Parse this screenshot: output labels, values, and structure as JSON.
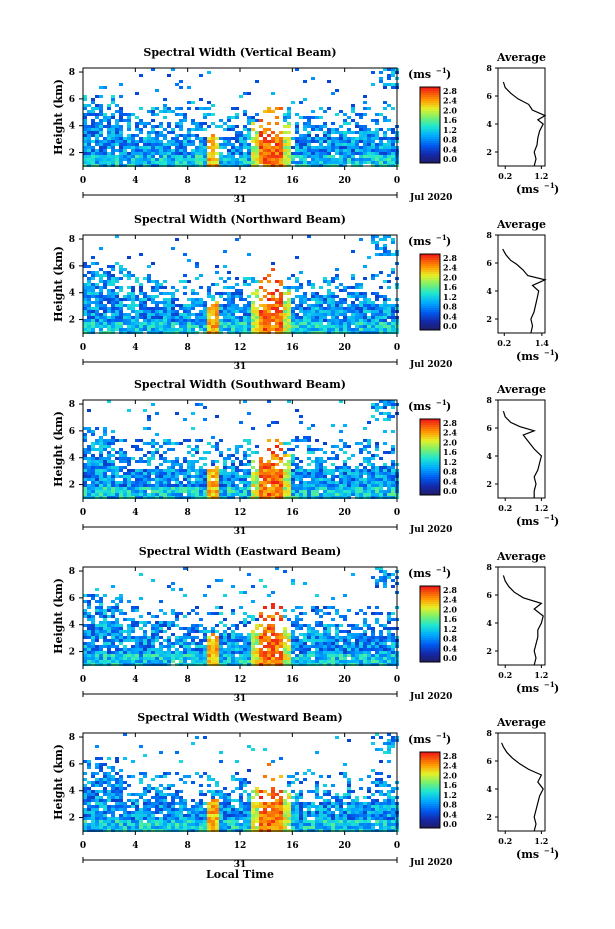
{
  "figure": {
    "x_axis_title": "Local Time",
    "colorbar_unit_base": "(ms",
    "colorbar_unit_exp": "−1",
    "profile_title": "Average",
    "date_day": "31",
    "date_month_year": "Jul 2020"
  },
  "chart_data": [
    {
      "type": "heatmap",
      "title": "Spectral Width (Vertical Beam)",
      "ylabel": "Height (km)",
      "x_ticks": [
        "0",
        "4",
        "8",
        "12",
        "16",
        "20",
        "0"
      ],
      "y_ticks": [
        "2",
        "4",
        "6",
        "8"
      ],
      "xlim": [
        0,
        24
      ],
      "ylim": [
        1,
        8.3
      ],
      "colorbar": {
        "ticks": [
          "2.8",
          "2.4",
          "2.0",
          "1.6",
          "1.2",
          "0.8",
          "0.4",
          "0.0"
        ],
        "range": [
          0,
          2.8
        ]
      },
      "profile": {
        "x_ticks": [
          "0.2",
          "1.2"
        ],
        "xlim": [
          0,
          1.3
        ],
        "y_ticks": [
          "2",
          "4",
          "6",
          "8"
        ],
        "ylim": [
          1,
          8
        ],
        "points": [
          [
            1.0,
            1.0
          ],
          [
            1.05,
            1.5
          ],
          [
            1.0,
            2.0
          ],
          [
            1.08,
            2.5
          ],
          [
            1.1,
            3.0
          ],
          [
            1.15,
            3.5
          ],
          [
            1.25,
            4.0
          ],
          [
            1.1,
            4.3
          ],
          [
            1.3,
            4.6
          ],
          [
            0.95,
            5.0
          ],
          [
            0.85,
            5.4
          ],
          [
            0.55,
            5.8
          ],
          [
            0.35,
            6.2
          ],
          [
            0.2,
            6.6
          ],
          [
            0.15,
            7.0
          ]
        ]
      }
    },
    {
      "type": "heatmap",
      "title": "Spectral Width (Northward Beam)",
      "ylabel": "Height (km)",
      "x_ticks": [
        "0",
        "4",
        "8",
        "12",
        "16",
        "20",
        "0"
      ],
      "y_ticks": [
        "2",
        "4",
        "6",
        "8"
      ],
      "xlim": [
        0,
        24
      ],
      "ylim": [
        1,
        8.3
      ],
      "colorbar": {
        "ticks": [
          "2.8",
          "2.4",
          "2.0",
          "1.6",
          "1.2",
          "0.8",
          "0.4",
          "0.0"
        ],
        "range": [
          0,
          2.8
        ]
      },
      "profile": {
        "x_ticks": [
          "0.2",
          "1.4"
        ],
        "xlim": [
          0,
          1.5
        ],
        "y_ticks": [
          "2",
          "4",
          "6",
          "8"
        ],
        "ylim": [
          1,
          8
        ],
        "points": [
          [
            1.05,
            1.0
          ],
          [
            1.1,
            1.5
          ],
          [
            1.05,
            2.0
          ],
          [
            1.15,
            2.5
          ],
          [
            1.2,
            3.0
          ],
          [
            1.25,
            3.5
          ],
          [
            1.3,
            4.0
          ],
          [
            1.1,
            4.4
          ],
          [
            1.5,
            4.8
          ],
          [
            0.95,
            5.1
          ],
          [
            0.8,
            5.5
          ],
          [
            0.6,
            5.9
          ],
          [
            0.4,
            6.2
          ],
          [
            0.25,
            6.6
          ],
          [
            0.15,
            7.0
          ]
        ]
      }
    },
    {
      "type": "heatmap",
      "title": "Spectral Width (Southward Beam)",
      "ylabel": "Height (km)",
      "x_ticks": [
        "0",
        "4",
        "8",
        "12",
        "16",
        "20",
        "0"
      ],
      "y_ticks": [
        "2",
        "4",
        "6",
        "8"
      ],
      "xlim": [
        0,
        24
      ],
      "ylim": [
        1,
        8.3
      ],
      "colorbar": {
        "ticks": [
          "2.8",
          "2.4",
          "2.0",
          "1.6",
          "1.2",
          "0.8",
          "0.4",
          "0.0"
        ],
        "range": [
          0,
          2.8
        ]
      },
      "profile": {
        "x_ticks": [
          "0.2",
          "1.2"
        ],
        "xlim": [
          0,
          1.3
        ],
        "y_ticks": [
          "2",
          "4",
          "6",
          "8"
        ],
        "ylim": [
          1,
          8
        ],
        "points": [
          [
            1.0,
            1.0
          ],
          [
            1.0,
            1.5
          ],
          [
            1.05,
            2.0
          ],
          [
            1.0,
            2.5
          ],
          [
            1.1,
            3.0
          ],
          [
            1.15,
            3.5
          ],
          [
            1.2,
            4.0
          ],
          [
            1.0,
            4.5
          ],
          [
            0.85,
            5.0
          ],
          [
            0.7,
            5.5
          ],
          [
            1.0,
            5.8
          ],
          [
            0.6,
            6.1
          ],
          [
            0.35,
            6.4
          ],
          [
            0.2,
            6.8
          ],
          [
            0.15,
            7.2
          ]
        ]
      }
    },
    {
      "type": "heatmap",
      "title": "Spectral Width (Eastward Beam)",
      "ylabel": "Height (km)",
      "x_ticks": [
        "0",
        "4",
        "8",
        "12",
        "16",
        "20",
        "0"
      ],
      "y_ticks": [
        "2",
        "4",
        "6",
        "8"
      ],
      "xlim": [
        0,
        24
      ],
      "ylim": [
        1,
        8.3
      ],
      "colorbar": {
        "ticks": [
          "2.8",
          "2.4",
          "2.0",
          "1.6",
          "1.2",
          "0.8",
          "0.4",
          "0.0"
        ],
        "range": [
          0,
          2.8
        ]
      },
      "profile": {
        "x_ticks": [
          "0.2",
          "1.2"
        ],
        "xlim": [
          0,
          1.3
        ],
        "y_ticks": [
          "2",
          "4",
          "6",
          "8"
        ],
        "ylim": [
          1,
          8
        ],
        "points": [
          [
            1.0,
            1.0
          ],
          [
            1.05,
            1.5
          ],
          [
            1.0,
            2.0
          ],
          [
            1.05,
            2.5
          ],
          [
            1.1,
            3.0
          ],
          [
            1.1,
            3.5
          ],
          [
            1.2,
            4.0
          ],
          [
            1.25,
            4.5
          ],
          [
            1.0,
            5.0
          ],
          [
            1.2,
            5.4
          ],
          [
            0.7,
            5.8
          ],
          [
            0.45,
            6.2
          ],
          [
            0.3,
            6.6
          ],
          [
            0.2,
            7.0
          ],
          [
            0.15,
            7.4
          ]
        ]
      }
    },
    {
      "type": "heatmap",
      "title": "Spectral Width (Westward Beam)",
      "ylabel": "Height (km)",
      "x_ticks": [
        "0",
        "4",
        "8",
        "12",
        "16",
        "20",
        "0"
      ],
      "y_ticks": [
        "2",
        "4",
        "6",
        "8"
      ],
      "xlim": [
        0,
        24
      ],
      "ylim": [
        1,
        8.3
      ],
      "colorbar": {
        "ticks": [
          "2.8",
          "2.4",
          "2.0",
          "1.6",
          "1.2",
          "0.8",
          "0.4",
          "0.0"
        ],
        "range": [
          0,
          2.8
        ]
      },
      "profile": {
        "x_ticks": [
          "0.2",
          "1.2"
        ],
        "xlim": [
          0,
          1.3
        ],
        "y_ticks": [
          "2",
          "4",
          "6",
          "8"
        ],
        "ylim": [
          1,
          8
        ],
        "points": [
          [
            1.0,
            1.0
          ],
          [
            1.05,
            1.5
          ],
          [
            1.0,
            2.0
          ],
          [
            1.05,
            2.5
          ],
          [
            1.1,
            3.0
          ],
          [
            1.15,
            3.5
          ],
          [
            1.25,
            4.0
          ],
          [
            1.1,
            4.5
          ],
          [
            1.2,
            5.0
          ],
          [
            0.85,
            5.4
          ],
          [
            0.6,
            5.8
          ],
          [
            0.4,
            6.2
          ],
          [
            0.25,
            6.6
          ],
          [
            0.15,
            7.0
          ],
          [
            0.1,
            7.3
          ]
        ]
      }
    }
  ]
}
